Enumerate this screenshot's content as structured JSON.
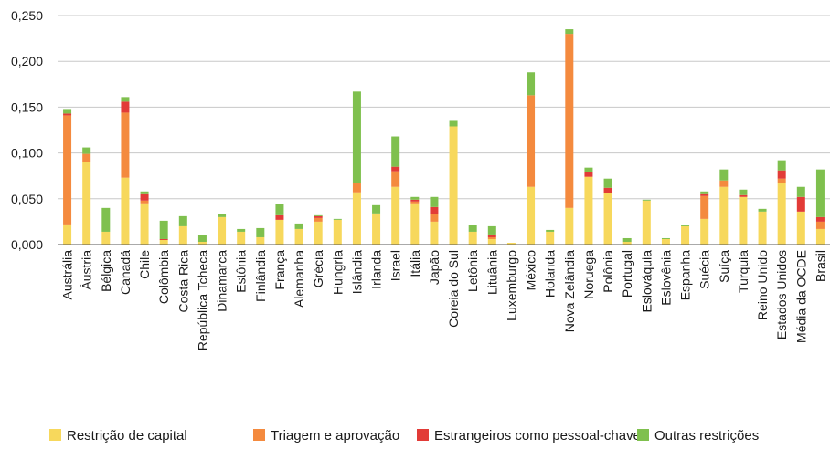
{
  "chart_data": {
    "type": "bar",
    "stacked": true,
    "title": "",
    "xlabel": "",
    "ylabel": "",
    "ylim": [
      0,
      0.25
    ],
    "yticks": [
      "0,000",
      "0,050",
      "0,100",
      "0,150",
      "0,200",
      "0,250"
    ],
    "grid": "horizontal",
    "legend_position": "bottom",
    "categories": [
      "Austrália",
      "Áustria",
      "Bélgica",
      "Canadá",
      "Chile",
      "Colômbia",
      "Costa Rica",
      "República Tcheca",
      "Dinamarca",
      "Estônia",
      "Finlândia",
      "França",
      "Alemanha",
      "Grécia",
      "Hungria",
      "Islândia",
      "Irlanda",
      "Israel",
      "Itália",
      "Japão",
      "Coreia do Sul",
      "Letônia",
      "Lituânia",
      "Luxemburgo",
      "México",
      "Holanda",
      "Nova Zelândia",
      "Noruega",
      "Polônia",
      "Portugal",
      "Eslováquia",
      "Eslovênia",
      "Espanha",
      "Suécia",
      "Suíça",
      "Turquia",
      "Reino Unido",
      "Estados Unidos",
      "Média da OCDE",
      "Brasil"
    ],
    "series": [
      {
        "name": "Restrição de capital",
        "color": "#f7d85c",
        "values": [
          0.022,
          0.09,
          0.014,
          0.073,
          0.045,
          0.005,
          0.02,
          0.003,
          0.03,
          0.014,
          0.008,
          0.027,
          0.017,
          0.025,
          0.027,
          0.057,
          0.034,
          0.063,
          0.045,
          0.025,
          0.129,
          0.014,
          0.006,
          0.002,
          0.063,
          0.014,
          0.04,
          0.074,
          0.056,
          0.003,
          0.048,
          0.006,
          0.02,
          0.028,
          0.063,
          0.052,
          0.036,
          0.067,
          0.036,
          0.017
        ]
      },
      {
        "name": "Triagem e aprovação",
        "color": "#f48a3e",
        "values": [
          0.119,
          0.009,
          0.0,
          0.071,
          0.003,
          0.0,
          0.0,
          0.0,
          0.0,
          0.0,
          0.0,
          0.0,
          0.0,
          0.004,
          0.0,
          0.01,
          0.0,
          0.017,
          0.002,
          0.008,
          0.0,
          0.0,
          0.002,
          0.0,
          0.1,
          0.0,
          0.19,
          0.0,
          0.0,
          0.0,
          0.0,
          0.0,
          0.0,
          0.025,
          0.007,
          0.0,
          0.0,
          0.005,
          0.0,
          0.008
        ]
      },
      {
        "name": "Estrangeiros como pessoal-chave",
        "color": "#e23b37",
        "values": [
          0.002,
          0.0,
          0.0,
          0.012,
          0.007,
          0.001,
          0.0,
          0.0,
          0.0,
          0.0,
          0.0,
          0.005,
          0.0,
          0.002,
          0.0,
          0.0,
          0.0,
          0.005,
          0.002,
          0.008,
          0.0,
          0.0,
          0.003,
          0.0,
          0.0,
          0.0,
          0.0,
          0.005,
          0.006,
          0.0,
          0.0,
          0.0,
          0.0,
          0.002,
          0.0,
          0.002,
          0.0,
          0.009,
          0.016,
          0.005
        ]
      },
      {
        "name": "Outras restrições",
        "color": "#7fc04e",
        "values": [
          0.005,
          0.007,
          0.026,
          0.005,
          0.003,
          0.02,
          0.011,
          0.007,
          0.003,
          0.003,
          0.01,
          0.012,
          0.006,
          0.001,
          0.001,
          0.1,
          0.009,
          0.033,
          0.003,
          0.011,
          0.006,
          0.007,
          0.009,
          0.0,
          0.025,
          0.002,
          0.005,
          0.005,
          0.01,
          0.004,
          0.001,
          0.001,
          0.001,
          0.003,
          0.012,
          0.006,
          0.003,
          0.011,
          0.011,
          0.052
        ]
      }
    ]
  }
}
